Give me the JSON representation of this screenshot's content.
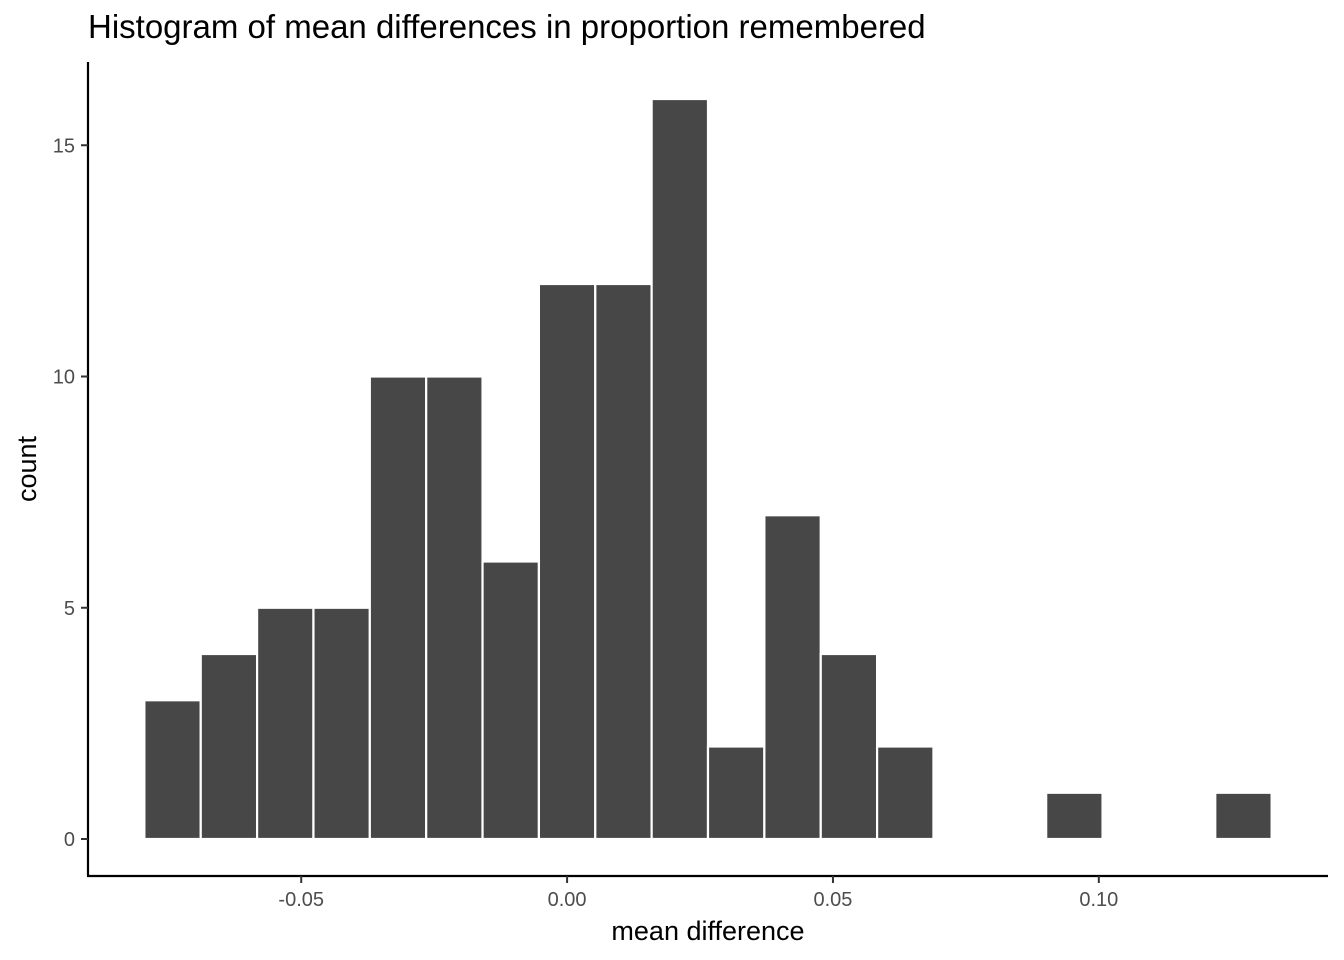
{
  "chart_data": {
    "type": "bar",
    "title": "Histogram of mean differences in proportion remembered",
    "xlabel": "mean difference",
    "ylabel": "count",
    "bin_width": 0.0106,
    "bins": [
      {
        "x_min": -0.0795,
        "x_max": -0.0689,
        "count": 3
      },
      {
        "x_min": -0.0689,
        "x_max": -0.0583,
        "count": 4
      },
      {
        "x_min": -0.0583,
        "x_max": -0.0477,
        "count": 5
      },
      {
        "x_min": -0.0477,
        "x_max": -0.0371,
        "count": 5
      },
      {
        "x_min": -0.0371,
        "x_max": -0.0265,
        "count": 10
      },
      {
        "x_min": -0.0265,
        "x_max": -0.0159,
        "count": 10
      },
      {
        "x_min": -0.0159,
        "x_max": -0.0053,
        "count": 6
      },
      {
        "x_min": -0.0053,
        "x_max": 0.0053,
        "count": 12
      },
      {
        "x_min": 0.0053,
        "x_max": 0.0159,
        "count": 12
      },
      {
        "x_min": 0.0159,
        "x_max": 0.0265,
        "count": 16
      },
      {
        "x_min": 0.0265,
        "x_max": 0.0371,
        "count": 2
      },
      {
        "x_min": 0.0371,
        "x_max": 0.0477,
        "count": 7
      },
      {
        "x_min": 0.0477,
        "x_max": 0.0583,
        "count": 4
      },
      {
        "x_min": 0.0583,
        "x_max": 0.0689,
        "count": 2
      },
      {
        "x_min": 0.0689,
        "x_max": 0.0795,
        "count": 0
      },
      {
        "x_min": 0.0795,
        "x_max": 0.0901,
        "count": 0
      },
      {
        "x_min": 0.0901,
        "x_max": 0.1007,
        "count": 1
      },
      {
        "x_min": 0.1007,
        "x_max": 0.1113,
        "count": 0
      },
      {
        "x_min": 0.1113,
        "x_max": 0.1219,
        "count": 0
      },
      {
        "x_min": 0.1219,
        "x_max": 0.1325,
        "count": 1
      }
    ],
    "xlim": [
      -0.0901,
      0.1431
    ],
    "ylim": [
      -0.8,
      16.8
    ],
    "x_ticks": [
      {
        "value": -0.05,
        "label": "-0.05"
      },
      {
        "value": 0.0,
        "label": "0.00"
      },
      {
        "value": 0.05,
        "label": "0.05"
      },
      {
        "value": 0.1,
        "label": "0.10"
      }
    ],
    "y_ticks": [
      {
        "value": 0,
        "label": "0"
      },
      {
        "value": 5,
        "label": "5"
      },
      {
        "value": 10,
        "label": "10"
      },
      {
        "value": 15,
        "label": "15"
      }
    ],
    "grid": false,
    "legend": "none",
    "bar_fill": "#474747",
    "bar_outline": "#ffffff",
    "axis_color": "#000000"
  }
}
